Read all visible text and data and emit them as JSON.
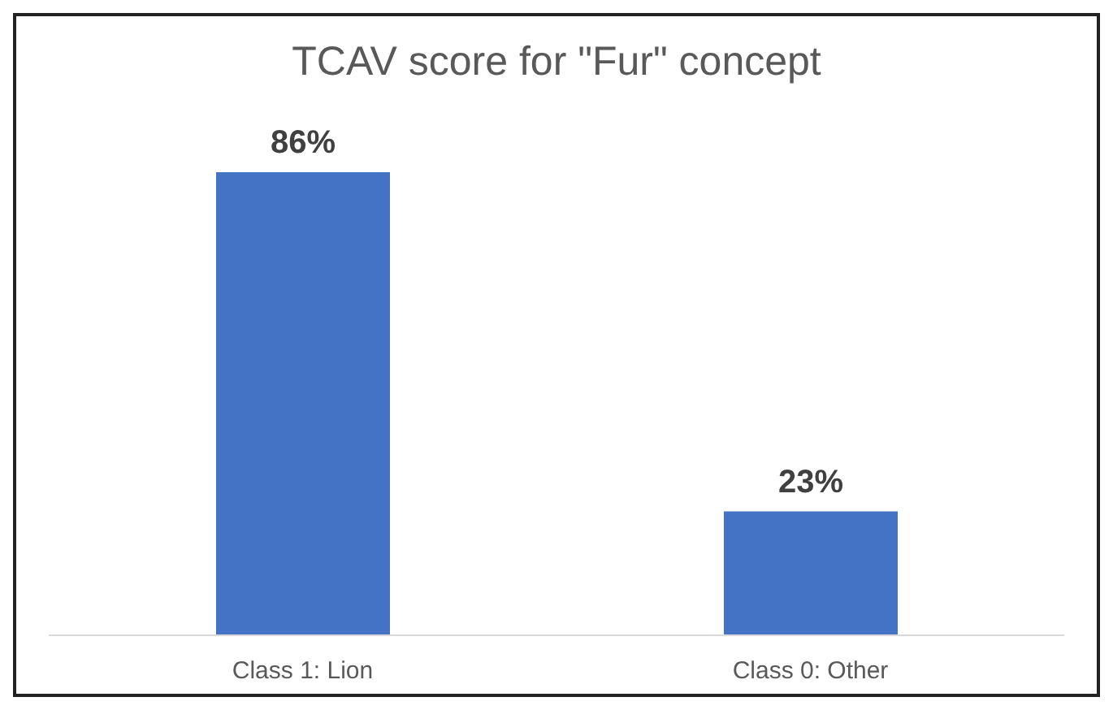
{
  "chart_data": {
    "type": "bar",
    "title": "TCAV score for \"Fur\" concept",
    "categories": [
      "Class 1: Lion",
      "Class 0: Other"
    ],
    "values": [
      86,
      23
    ],
    "value_labels": [
      "86%",
      "23%"
    ],
    "color": "#4472c4",
    "grid": false,
    "legend": false
  }
}
